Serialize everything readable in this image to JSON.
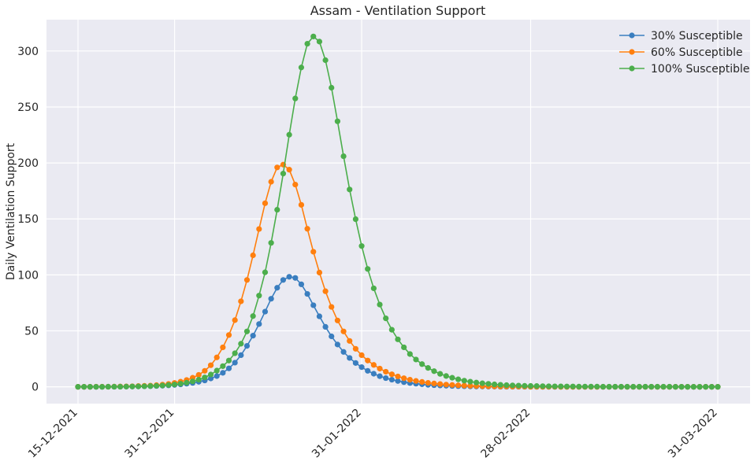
{
  "chart_data": {
    "type": "line",
    "title": "Assam - Ventilation Support",
    "xlabel": "",
    "ylabel": "Daily Ventilation Support",
    "x_start": "15-12-2021",
    "x_end": "31-03-2022",
    "x_step_days": 1,
    "xticks": [
      {
        "label": "15-12-2021",
        "day": 0
      },
      {
        "label": "31-12-2021",
        "day": 16
      },
      {
        "label": "31-01-2022",
        "day": 47
      },
      {
        "label": "28-02-2022",
        "day": 75
      },
      {
        "label": "31-03-2022",
        "day": 106
      }
    ],
    "yticks": [
      0,
      50,
      100,
      150,
      200,
      250,
      300
    ],
    "ylim": [
      -15,
      328
    ],
    "grid": true,
    "legend_position": "top-right",
    "colors": {
      "background": "#eaeaf2",
      "grid": "#ffffff"
    },
    "series": [
      {
        "name": "30% Susceptible",
        "color": "#3a7ebf",
        "values": [
          0,
          0,
          0,
          0,
          0,
          0.1,
          0.1,
          0.2,
          0.2,
          0.3,
          0.4,
          0.5,
          0.6,
          0.8,
          1,
          1.3,
          1.7,
          2.2,
          2.8,
          3.5,
          4.5,
          5.7,
          7.5,
          9.6,
          12.5,
          16.5,
          21.6,
          28.3,
          36.6,
          45.7,
          56.1,
          67.2,
          78.7,
          88.5,
          95.5,
          98.3,
          97.3,
          91.6,
          83,
          72.9,
          63,
          53.6,
          45.1,
          37.8,
          31.2,
          25.8,
          21.3,
          17.6,
          14.3,
          11.7,
          9.5,
          7.8,
          6.4,
          5.2,
          4.2,
          3.4,
          2.8,
          2.3,
          1.8,
          1.5,
          1.2,
          1,
          0.8,
          0.6,
          0.5,
          0.4,
          0.3,
          0.3,
          0.2,
          0.2,
          0.1,
          0.1,
          0.1,
          0.1,
          0.1,
          0,
          0,
          0,
          0,
          0,
          0,
          0,
          0,
          0,
          0,
          0,
          0,
          0,
          0,
          0,
          0,
          0,
          0,
          0,
          0,
          0,
          0,
          0,
          0,
          0,
          0,
          0,
          0,
          0,
          0,
          0,
          0
        ]
      },
      {
        "name": "60% Susceptible",
        "color": "#ff7f0e",
        "values": [
          0,
          0,
          0,
          0.1,
          0.1,
          0.1,
          0.2,
          0.3,
          0.4,
          0.5,
          0.7,
          0.9,
          1.1,
          1.5,
          2,
          2.6,
          3.5,
          4.6,
          6.1,
          8.1,
          10.7,
          14.3,
          19.3,
          26.3,
          35.3,
          46.3,
          59.6,
          76.4,
          95.5,
          117.5,
          141,
          164,
          183.2,
          196,
          198.5,
          194,
          180.7,
          162.6,
          141.2,
          120.7,
          102.1,
          85.4,
          71.4,
          59.3,
          49.5,
          41,
          34,
          28.3,
          23.5,
          19.6,
          16.3,
          13.5,
          11.2,
          9.3,
          7.7,
          6.4,
          5.3,
          4.4,
          3.6,
          3,
          2.5,
          2,
          1.7,
          1.4,
          1.1,
          0.9,
          0.8,
          0.6,
          0.5,
          0.4,
          0.3,
          0.3,
          0.2,
          0.2,
          0.2,
          0.1,
          0.1,
          0.1,
          0.1,
          0.1,
          0,
          0,
          0,
          0,
          0,
          0,
          0,
          0,
          0,
          0,
          0,
          0,
          0,
          0,
          0,
          0,
          0,
          0,
          0,
          0,
          0,
          0,
          0,
          0,
          0,
          0,
          0
        ]
      },
      {
        "name": "100% Susceptible",
        "color": "#4cae4c",
        "values": [
          0,
          0,
          0,
          0,
          0,
          0.1,
          0.1,
          0.1,
          0.2,
          0.3,
          0.4,
          0.5,
          0.7,
          0.9,
          1.2,
          1.6,
          2.1,
          2.8,
          3.7,
          4.9,
          6.4,
          8.4,
          11,
          14.5,
          18.5,
          23.5,
          30,
          38.5,
          49.5,
          63.2,
          81.5,
          102.3,
          128.6,
          158.2,
          190.5,
          225.2,
          257.6,
          285.3,
          306.5,
          313,
          308.4,
          291.8,
          267.2,
          237.2,
          206,
          176.3,
          149.8,
          125.8,
          105.3,
          88,
          73.5,
          61.2,
          51,
          42.4,
          35.3,
          29.3,
          24.4,
          20.3,
          16.9,
          14,
          11.6,
          9.7,
          8.1,
          6.7,
          5.5,
          4.6,
          3.8,
          3.2,
          2.7,
          2.2,
          1.8,
          1.5,
          1.3,
          1.1,
          0.9,
          0.8,
          0.7,
          0.6,
          0.5,
          0.4,
          0.4,
          0.3,
          0.3,
          0.2,
          0.2,
          0.2,
          0.2,
          0.1,
          0.1,
          0.1,
          0.1,
          0.1,
          0.1,
          0.1,
          0.1,
          0.1,
          0.1,
          0.1,
          0.1,
          0,
          0,
          0,
          0,
          0,
          0,
          0,
          0
        ]
      }
    ]
  }
}
